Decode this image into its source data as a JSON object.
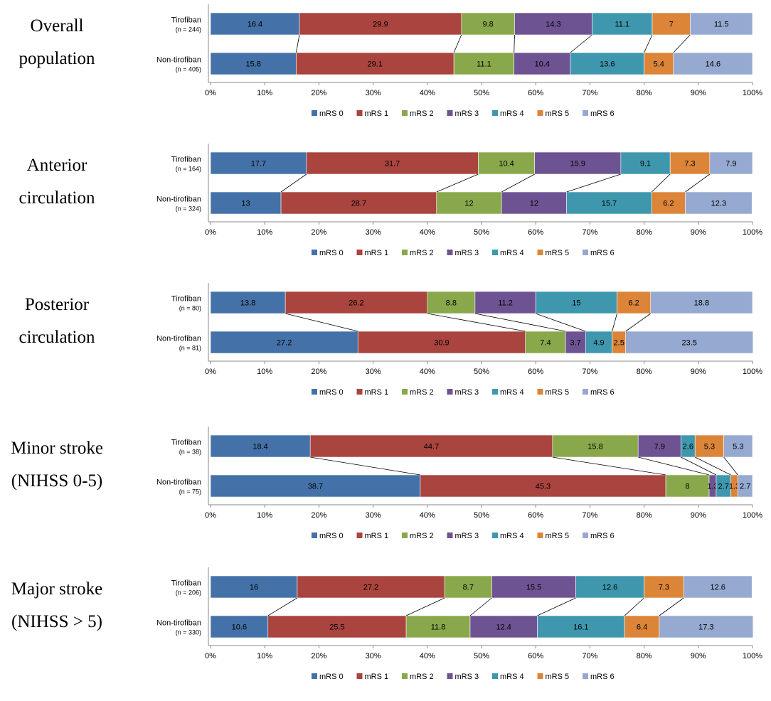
{
  "colors": {
    "mRS 0": "#4472a8",
    "mRS 1": "#a9443f",
    "mRS 2": "#89a84b",
    "mRS 3": "#6e5393",
    "mRS 4": "#3f97ae",
    "mRS 5": "#dc8538",
    "mRS 6": "#95a9d1"
  },
  "chart_data": [
    {
      "type": "bar",
      "orientation": "horizontal-stacked-percent",
      "title": [
        "Overall",
        "population"
      ],
      "categories": [
        {
          "name": "Tirofiban",
          "n": "(n = 244)"
        },
        {
          "name": "Non-tirofiban",
          "n": "(n = 405)"
        }
      ],
      "xlim": [
        0,
        100
      ],
      "xticks": [
        "0%",
        "10%",
        "20%",
        "30%",
        "40%",
        "50%",
        "60%",
        "70%",
        "80%",
        "90%",
        "100%"
      ],
      "series": [
        {
          "name": "mRS 0",
          "values": [
            16.4,
            15.8
          ]
        },
        {
          "name": "mRS 1",
          "values": [
            29.9,
            29.1
          ]
        },
        {
          "name": "mRS 2",
          "values": [
            9.8,
            11.1
          ]
        },
        {
          "name": "mRS 3",
          "values": [
            14.3,
            10.4
          ]
        },
        {
          "name": "mRS 4",
          "values": [
            11.1,
            13.6
          ]
        },
        {
          "name": "mRS 5",
          "values": [
            7,
            5.4
          ]
        },
        {
          "name": "mRS 6",
          "values": [
            11.5,
            14.6
          ]
        }
      ],
      "legend": "bottom"
    },
    {
      "type": "bar",
      "orientation": "horizontal-stacked-percent",
      "title": [
        "Anterior",
        "circulation"
      ],
      "categories": [
        {
          "name": "Tirofiban",
          "n": "(n = 164)"
        },
        {
          "name": "Non-tirofiban",
          "n": "(n = 324)"
        }
      ],
      "xlim": [
        0,
        100
      ],
      "xticks": [
        "0%",
        "10%",
        "20%",
        "30%",
        "40%",
        "50%",
        "60%",
        "70%",
        "80%",
        "90%",
        "100%"
      ],
      "series": [
        {
          "name": "mRS 0",
          "values": [
            17.7,
            13
          ]
        },
        {
          "name": "mRS 1",
          "values": [
            31.7,
            28.7
          ]
        },
        {
          "name": "mRS 2",
          "values": [
            10.4,
            12
          ]
        },
        {
          "name": "mRS 3",
          "values": [
            15.9,
            12
          ]
        },
        {
          "name": "mRS 4",
          "values": [
            9.1,
            15.7
          ]
        },
        {
          "name": "mRS 5",
          "values": [
            7.3,
            6.2
          ]
        },
        {
          "name": "mRS 6",
          "values": [
            7.9,
            12.3
          ]
        }
      ],
      "legend": "bottom"
    },
    {
      "type": "bar",
      "orientation": "horizontal-stacked-percent",
      "title": [
        "Posterior",
        "circulation"
      ],
      "categories": [
        {
          "name": "Tirofiban",
          "n": "(n = 80)"
        },
        {
          "name": "Non-tirofiban",
          "n": "(n = 81)"
        }
      ],
      "xlim": [
        0,
        100
      ],
      "xticks": [
        "0%",
        "10%",
        "20%",
        "30%",
        "40%",
        "50%",
        "60%",
        "70%",
        "80%",
        "90%",
        "100%"
      ],
      "series": [
        {
          "name": "mRS 0",
          "values": [
            13.8,
            27.2
          ]
        },
        {
          "name": "mRS 1",
          "values": [
            26.2,
            30.9
          ]
        },
        {
          "name": "mRS 2",
          "values": [
            8.8,
            7.4
          ]
        },
        {
          "name": "mRS 3",
          "values": [
            11.2,
            3.7
          ]
        },
        {
          "name": "mRS 4",
          "values": [
            15,
            4.9
          ]
        },
        {
          "name": "mRS 5",
          "values": [
            6.2,
            2.5
          ]
        },
        {
          "name": "mRS 6",
          "values": [
            18.8,
            23.5
          ]
        }
      ],
      "legend": "bottom"
    },
    {
      "type": "bar",
      "orientation": "horizontal-stacked-percent",
      "title": [
        "Minor stroke",
        "(NIHSS 0-5)"
      ],
      "categories": [
        {
          "name": "Tirofiban",
          "n": "(n = 38)"
        },
        {
          "name": "Non-tirofiban",
          "n": "(n = 75)"
        }
      ],
      "xlim": [
        0,
        100
      ],
      "xticks": [
        "0%",
        "10%",
        "20%",
        "30%",
        "40%",
        "50%",
        "60%",
        "70%",
        "80%",
        "90%",
        "100%"
      ],
      "series": [
        {
          "name": "mRS 0",
          "values": [
            18.4,
            38.7
          ]
        },
        {
          "name": "mRS 1",
          "values": [
            44.7,
            45.3
          ]
        },
        {
          "name": "mRS 2",
          "values": [
            15.8,
            8
          ]
        },
        {
          "name": "mRS 3",
          "values": [
            7.9,
            1.3
          ]
        },
        {
          "name": "mRS 4",
          "values": [
            2.6,
            2.7
          ]
        },
        {
          "name": "mRS 5",
          "values": [
            5.3,
            1.3
          ]
        },
        {
          "name": "mRS 6",
          "values": [
            5.3,
            2.7
          ]
        }
      ],
      "legend": "bottom"
    },
    {
      "type": "bar",
      "orientation": "horizontal-stacked-percent",
      "title": [
        "Major stroke",
        "(NIHSS > 5)"
      ],
      "categories": [
        {
          "name": "Tirofiban",
          "n": "(n = 206)"
        },
        {
          "name": "Non-tirofiban",
          "n": "(n = 330)"
        }
      ],
      "xlim": [
        0,
        100
      ],
      "xticks": [
        "0%",
        "10%",
        "20%",
        "30%",
        "40%",
        "50%",
        "60%",
        "70%",
        "80%",
        "90%",
        "100%"
      ],
      "series": [
        {
          "name": "mRS 0",
          "values": [
            16,
            10.6
          ]
        },
        {
          "name": "mRS 1",
          "values": [
            27.2,
            25.5
          ]
        },
        {
          "name": "mRS 2",
          "values": [
            8.7,
            11.8
          ]
        },
        {
          "name": "mRS 3",
          "values": [
            15.5,
            12.4
          ]
        },
        {
          "name": "mRS 4",
          "values": [
            12.6,
            16.1
          ]
        },
        {
          "name": "mRS 5",
          "values": [
            7.3,
            6.4
          ]
        },
        {
          "name": "mRS 6",
          "values": [
            12.6,
            17.3
          ]
        }
      ],
      "legend": "bottom"
    }
  ]
}
